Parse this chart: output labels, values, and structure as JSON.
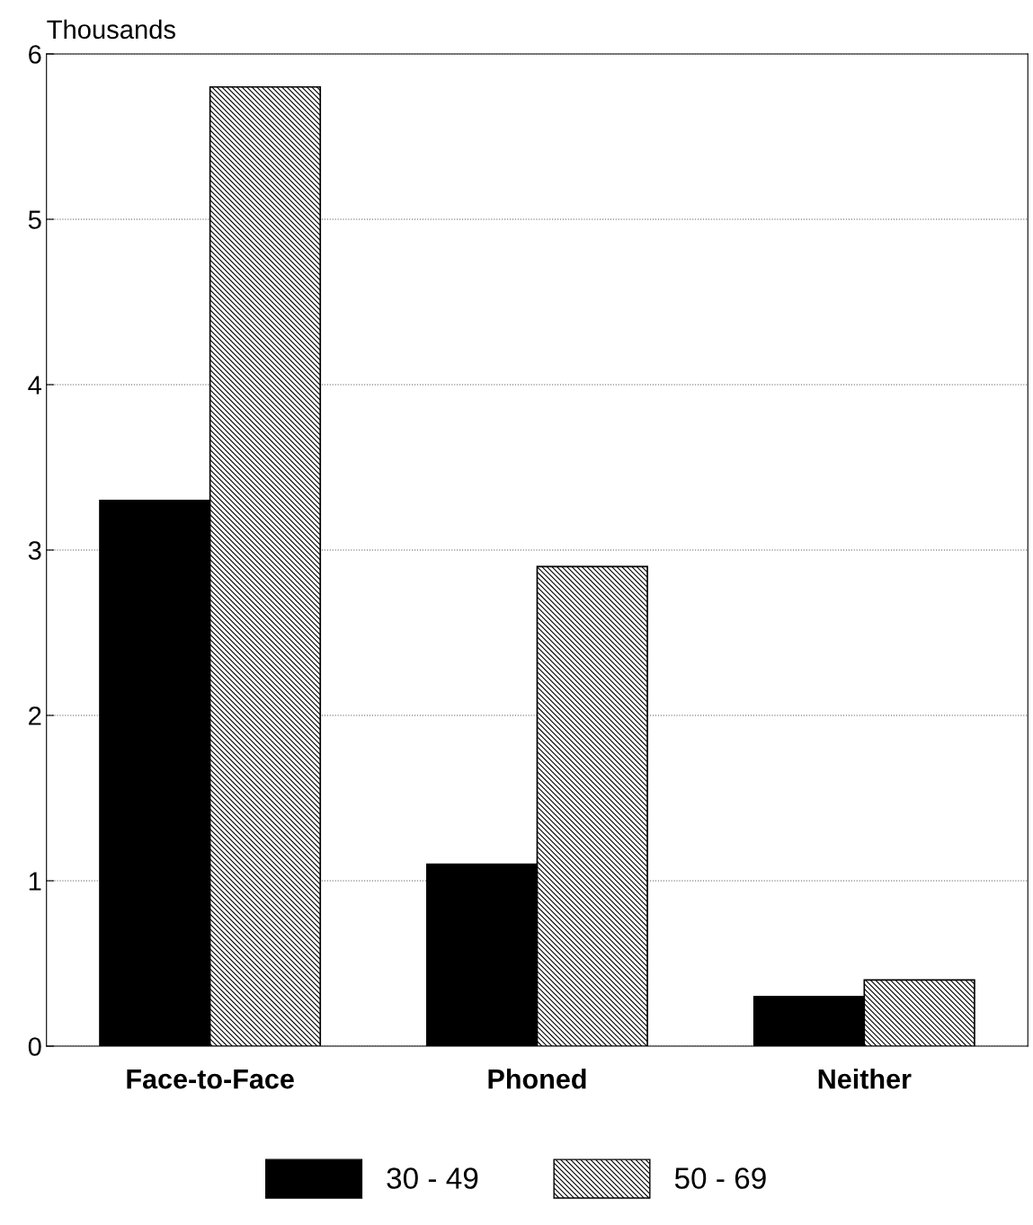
{
  "chart_data": {
    "type": "bar",
    "ylabel": "Thousands",
    "categories": [
      "Face-to-Face",
      "Phoned",
      "Neither"
    ],
    "series": [
      {
        "name": "30 - 49",
        "color": "#000000",
        "values": [
          3.3,
          1.1,
          0.3
        ]
      },
      {
        "name": "50 - 69",
        "color": "#000000",
        "values": [
          5.8,
          2.9,
          0.4
        ]
      }
    ],
    "ylim": [
      0,
      6
    ],
    "yticks": [
      0,
      1,
      2,
      3,
      4,
      5,
      6
    ],
    "grid": "y",
    "legend": "bottom"
  }
}
